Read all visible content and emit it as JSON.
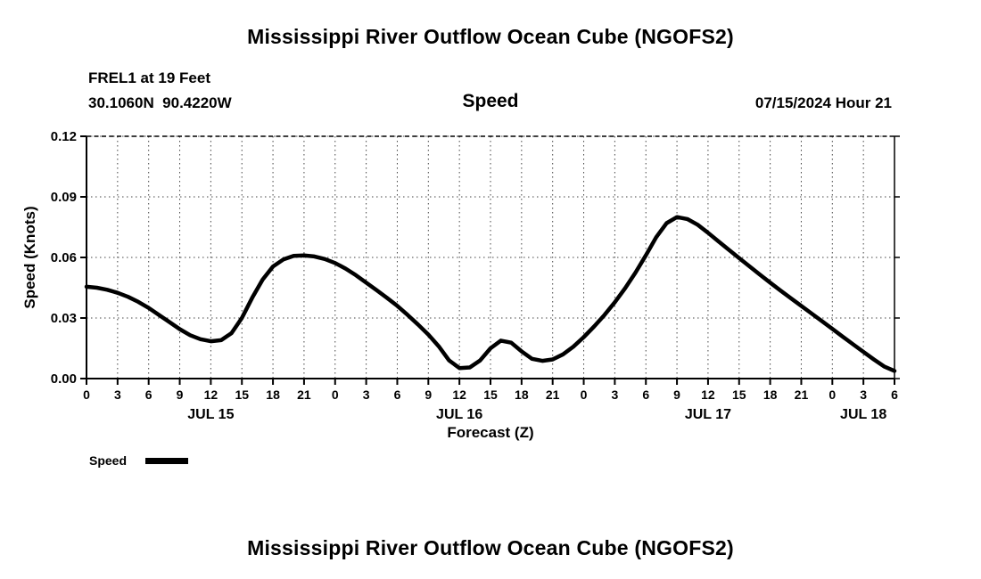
{
  "page": {
    "top_title": "Mississippi River Outflow Ocean Cube (NGOFS2)",
    "bottom_title": "Mississippi River Outflow Ocean Cube (NGOFS2)"
  },
  "header": {
    "station": "FREL1 at 19 Feet",
    "coords": "30.1060N  90.4220W",
    "center_label": "Speed",
    "datetime": "07/15/2024 Hour 21"
  },
  "legend": {
    "label": "Speed"
  },
  "chart_data": {
    "type": "line",
    "title": "Speed",
    "xlabel": "Forecast (Z)",
    "ylabel": "Speed (Knots)",
    "xlim": [
      0,
      78
    ],
    "ylim": [
      0,
      0.12
    ],
    "grid": "dotted",
    "legend_position": "bottom-left",
    "x_tick_interval_hours": 3,
    "x_tick_labels": [
      "0",
      "3",
      "6",
      "9",
      "12",
      "15",
      "18",
      "21",
      "0",
      "3",
      "6",
      "9",
      "12",
      "15",
      "18",
      "21",
      "0",
      "3",
      "6",
      "9",
      "12",
      "15",
      "18",
      "21",
      "0",
      "3",
      "6"
    ],
    "y_tick_values": [
      0,
      0.03,
      0.06,
      0.09,
      0.12
    ],
    "y_tick_labels": [
      "0.00",
      "0.03",
      "0.06",
      "0.09",
      "0.12"
    ],
    "day_labels": [
      {
        "label": "JUL 15",
        "hour": 12
      },
      {
        "label": "JUL 16",
        "hour": 36
      },
      {
        "label": "JUL 17",
        "hour": 60
      },
      {
        "label": "JUL 18",
        "hour": 75
      }
    ],
    "series": [
      {
        "name": "Speed",
        "color": "#000000",
        "x": [
          0,
          1,
          2,
          3,
          4,
          5,
          6,
          7,
          8,
          9,
          10,
          11,
          12,
          13,
          14,
          15,
          16,
          17,
          18,
          19,
          20,
          21,
          22,
          23,
          24,
          25,
          26,
          27,
          28,
          29,
          30,
          31,
          32,
          33,
          34,
          35,
          36,
          37,
          38,
          39,
          40,
          41,
          42,
          43,
          44,
          45,
          46,
          47,
          48,
          49,
          50,
          51,
          52,
          53,
          54,
          55,
          56,
          57,
          58,
          59,
          60,
          61,
          62,
          63,
          64,
          65,
          66,
          67,
          68,
          69,
          70,
          71,
          72,
          73,
          74,
          75,
          76,
          77,
          78
        ],
        "values": [
          0.0455,
          0.045,
          0.044,
          0.0425,
          0.0405,
          0.038,
          0.035,
          0.0315,
          0.028,
          0.0245,
          0.0215,
          0.0195,
          0.0185,
          0.019,
          0.0225,
          0.03,
          0.04,
          0.049,
          0.0555,
          0.059,
          0.0608,
          0.061,
          0.0605,
          0.0592,
          0.0572,
          0.0545,
          0.0512,
          0.0475,
          0.0438,
          0.04,
          0.036,
          0.0315,
          0.0268,
          0.0218,
          0.016,
          0.009,
          0.0052,
          0.0055,
          0.009,
          0.015,
          0.0188,
          0.0178,
          0.0135,
          0.0098,
          0.0088,
          0.0095,
          0.012,
          0.0158,
          0.0205,
          0.0258,
          0.0315,
          0.0378,
          0.0448,
          0.0525,
          0.061,
          0.07,
          0.077,
          0.08,
          0.079,
          0.0762,
          0.0722,
          0.068,
          0.0638,
          0.0597,
          0.0556,
          0.0515,
          0.0475,
          0.0436,
          0.0398,
          0.036,
          0.0322,
          0.0284,
          0.0246,
          0.0208,
          0.017,
          0.0132,
          0.0095,
          0.006,
          0.0038
        ]
      }
    ]
  }
}
